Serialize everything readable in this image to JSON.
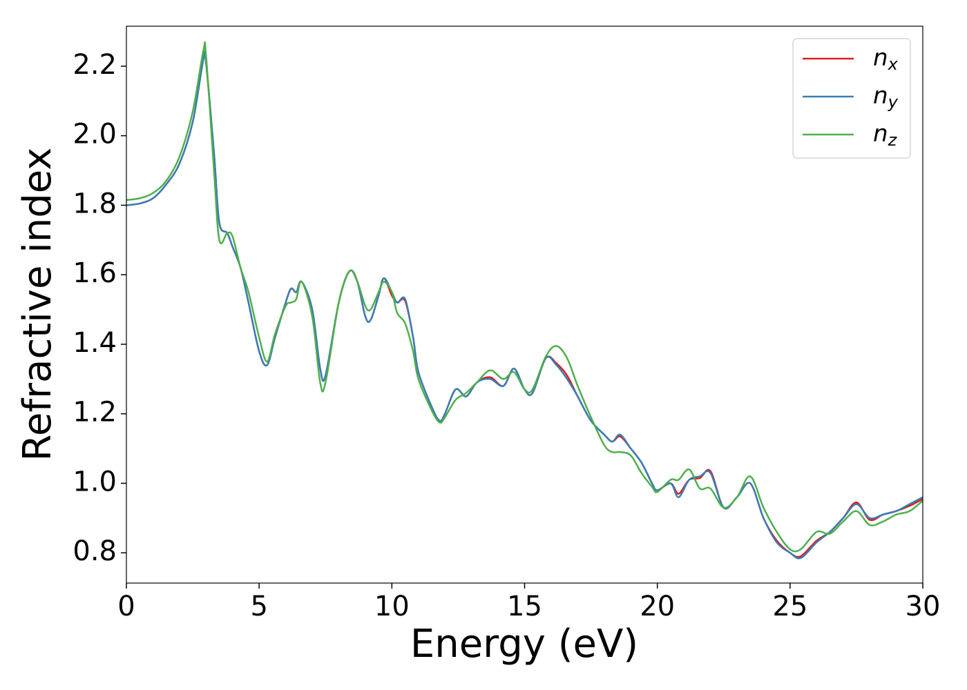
{
  "chart_data": {
    "type": "line",
    "xlabel": "Energy (eV)",
    "ylabel": "Refractive index",
    "x": [
      0,
      0.5,
      1,
      1.5,
      2,
      2.5,
      2.9,
      3,
      3.3,
      3.5,
      3.8,
      4,
      4.3,
      4.6,
      5,
      5.3,
      5.6,
      6,
      6.2,
      6.4,
      6.6,
      7,
      7.3,
      7.5,
      8,
      8.4,
      8.7,
      9,
      9.2,
      9.5,
      9.7,
      10,
      10.2,
      10.5,
      10.8,
      11,
      11.5,
      11.8,
      12,
      12.4,
      12.8,
      13.2,
      13.7,
      14.2,
      14.6,
      15,
      15.3,
      15.8,
      16.2,
      16.6,
      17,
      17.5,
      18,
      18.3,
      18.6,
      19,
      19.4,
      19.8,
      20,
      20.5,
      20.8,
      21.2,
      21.6,
      22,
      22.5,
      23,
      23.5,
      24,
      24.5,
      25,
      25.4,
      26,
      26.5,
      27,
      27.5,
      28,
      28.5,
      29,
      29.5,
      30
    ],
    "series": [
      {
        "name": "n_x",
        "color": "#e41a1c",
        "values": [
          1.8,
          1.805,
          1.82,
          1.86,
          1.92,
          2.04,
          2.22,
          2.21,
          1.95,
          1.75,
          1.72,
          1.68,
          1.62,
          1.52,
          1.38,
          1.34,
          1.42,
          1.52,
          1.56,
          1.55,
          1.58,
          1.5,
          1.33,
          1.31,
          1.52,
          1.61,
          1.58,
          1.48,
          1.47,
          1.54,
          1.59,
          1.54,
          1.52,
          1.525,
          1.42,
          1.32,
          1.22,
          1.18,
          1.2,
          1.27,
          1.25,
          1.29,
          1.305,
          1.28,
          1.33,
          1.27,
          1.26,
          1.36,
          1.345,
          1.31,
          1.25,
          1.18,
          1.14,
          1.12,
          1.135,
          1.1,
          1.06,
          1.0,
          0.98,
          1.0,
          0.97,
          1.01,
          1.015,
          1.035,
          0.93,
          0.96,
          1.0,
          0.9,
          0.835,
          0.8,
          0.79,
          0.835,
          0.86,
          0.9,
          0.945,
          0.895,
          0.91,
          0.92,
          0.935,
          0.955
        ]
      },
      {
        "name": "n_y",
        "color": "#377eb8",
        "values": [
          1.8,
          1.805,
          1.82,
          1.86,
          1.92,
          2.04,
          2.22,
          2.21,
          1.95,
          1.75,
          1.72,
          1.68,
          1.62,
          1.52,
          1.38,
          1.34,
          1.42,
          1.52,
          1.56,
          1.55,
          1.58,
          1.5,
          1.33,
          1.31,
          1.52,
          1.61,
          1.58,
          1.48,
          1.47,
          1.54,
          1.59,
          1.55,
          1.52,
          1.53,
          1.42,
          1.32,
          1.22,
          1.18,
          1.2,
          1.27,
          1.25,
          1.29,
          1.3,
          1.28,
          1.33,
          1.27,
          1.26,
          1.36,
          1.34,
          1.3,
          1.25,
          1.18,
          1.14,
          1.12,
          1.14,
          1.1,
          1.06,
          1.0,
          0.98,
          1.0,
          0.96,
          1.01,
          1.02,
          1.03,
          0.93,
          0.96,
          1.0,
          0.9,
          0.83,
          0.8,
          0.785,
          0.83,
          0.86,
          0.9,
          0.94,
          0.9,
          0.91,
          0.92,
          0.94,
          0.96
        ]
      },
      {
        "name": "n_z",
        "color": "#4daf4a",
        "values": [
          1.815,
          1.82,
          1.835,
          1.87,
          1.94,
          2.07,
          2.245,
          2.23,
          1.9,
          1.7,
          1.72,
          1.71,
          1.62,
          1.55,
          1.42,
          1.35,
          1.43,
          1.51,
          1.52,
          1.53,
          1.58,
          1.48,
          1.29,
          1.29,
          1.52,
          1.61,
          1.58,
          1.51,
          1.5,
          1.55,
          1.58,
          1.55,
          1.49,
          1.46,
          1.38,
          1.3,
          1.21,
          1.175,
          1.19,
          1.24,
          1.26,
          1.29,
          1.325,
          1.3,
          1.32,
          1.27,
          1.27,
          1.365,
          1.395,
          1.36,
          1.28,
          1.19,
          1.11,
          1.09,
          1.09,
          1.08,
          1.03,
          0.99,
          0.975,
          1.01,
          1.01,
          1.04,
          0.985,
          0.985,
          0.93,
          0.96,
          1.02,
          0.93,
          0.86,
          0.81,
          0.81,
          0.86,
          0.855,
          0.89,
          0.92,
          0.88,
          0.89,
          0.91,
          0.92,
          0.95
        ]
      }
    ],
    "xlim": [
      0,
      30
    ],
    "xticks": [
      0,
      5,
      10,
      15,
      20,
      25,
      30
    ],
    "ylim": [
      0.713,
      2.315
    ],
    "yticks": [
      0.8,
      {
        "value": 1,
        "label": "1.0"
      },
      1.2,
      1.4,
      1.6,
      1.8,
      {
        "value": 2,
        "label": "2.0"
      },
      2.2
    ],
    "legend": "upper right",
    "grid": false
  }
}
